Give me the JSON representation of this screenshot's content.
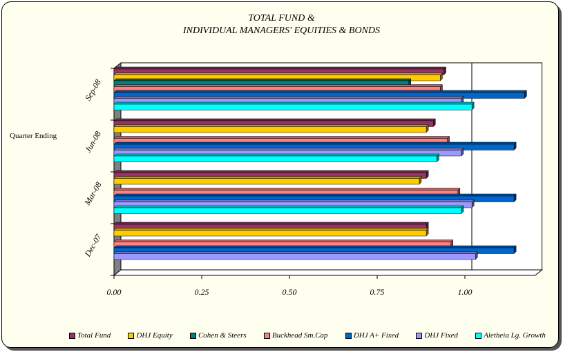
{
  "chart_data": {
    "type": "bar",
    "orientation": "horizontal",
    "title_lines": [
      "TOTAL FUND &",
      "INDIVIDUAL MANAGERS' EQUITIES & BONDS"
    ],
    "ylabel": "Quarter Ending",
    "xlabel": "",
    "xlim": [
      0,
      1.2
    ],
    "x_ticks": [
      "0.00",
      "0.25",
      "0.50",
      "0.75",
      "1.00"
    ],
    "x_tick_values": [
      0,
      0.25,
      0.5,
      0.75,
      1.0
    ],
    "reference_line": 1.0,
    "legend_position": "bottom",
    "categories": [
      "Sep-08",
      "Jun-08",
      "Mar-08",
      "Dec-07"
    ],
    "series": [
      {
        "name": "Total Fund",
        "color": "#993366",
        "values": [
          0.94,
          0.91,
          0.89,
          0.89
        ]
      },
      {
        "name": "DHJ Equity",
        "color": "#ffcc00",
        "values": [
          0.93,
          0.89,
          0.87,
          0.89
        ]
      },
      {
        "name": "Cohen & Steers",
        "color": "#008080",
        "values": [
          0.84,
          null,
          null,
          null
        ]
      },
      {
        "name": "Buckhead Sm.Cap",
        "color": "#ff8080",
        "values": [
          0.93,
          0.95,
          0.98,
          0.96
        ]
      },
      {
        "name": "DHJ A+ Fixed",
        "color": "#0066cc",
        "values": [
          1.17,
          1.14,
          1.14,
          1.14
        ]
      },
      {
        "name": "DHJ Fixed",
        "color": "#9999ff",
        "values": [
          0.99,
          0.99,
          1.02,
          1.03
        ]
      },
      {
        "name": "Aletheia Lg. Growth",
        "color": "#00ffff",
        "values": [
          1.02,
          0.92,
          0.99,
          null
        ]
      }
    ]
  }
}
